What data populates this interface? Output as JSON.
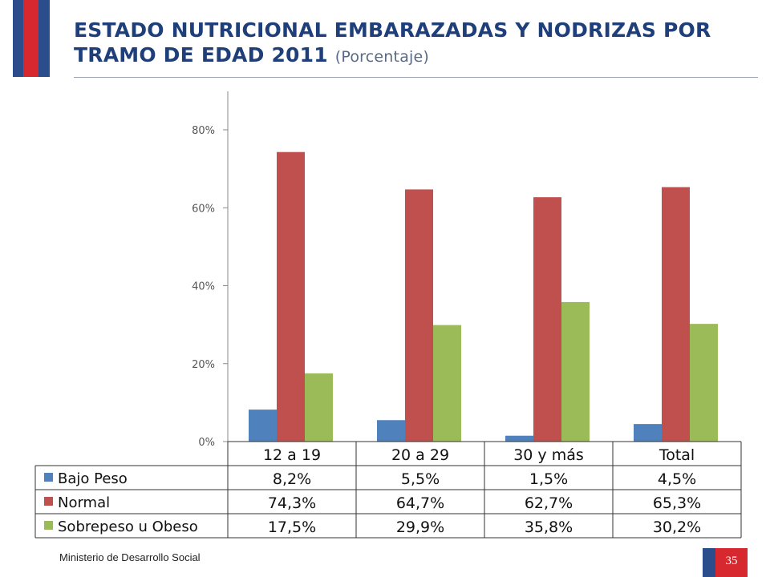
{
  "title_main": "ESTADO NUTRICIONAL EMBARAZADAS Y NODRIZAS POR TRAMO DE EDAD 2011",
  "title_sub": "(Porcentaje)",
  "footer": "Ministerio de Desarrollo Social",
  "page_number": "35",
  "chart_data": {
    "type": "bar",
    "categories": [
      "12 a 19",
      "20 a 29",
      "30 y más",
      "Total"
    ],
    "series": [
      {
        "name": "Bajo Peso",
        "values": [
          8.2,
          5.5,
          1.5,
          4.5
        ],
        "labels": [
          "8,2%",
          "5,5%",
          "1,5%",
          "4,5%"
        ],
        "color": "#4f81bd"
      },
      {
        "name": "Normal",
        "values": [
          74.3,
          64.7,
          62.7,
          65.3
        ],
        "labels": [
          "74,3%",
          "64,7%",
          "62,7%",
          "65,3%"
        ],
        "color": "#c0504d"
      },
      {
        "name": "Sobrepeso u Obeso",
        "values": [
          17.5,
          29.9,
          35.8,
          30.2
        ],
        "labels": [
          "17,5%",
          "29,9%",
          "35,8%",
          "30,2%"
        ],
        "color": "#9bbb59"
      }
    ],
    "yticks": [
      0,
      20,
      40,
      60,
      80
    ],
    "ytick_labels": [
      "0%",
      "20%",
      "40%",
      "60%",
      "80%"
    ],
    "ylim": [
      0,
      90
    ],
    "grid": false,
    "legend": "data-table"
  }
}
